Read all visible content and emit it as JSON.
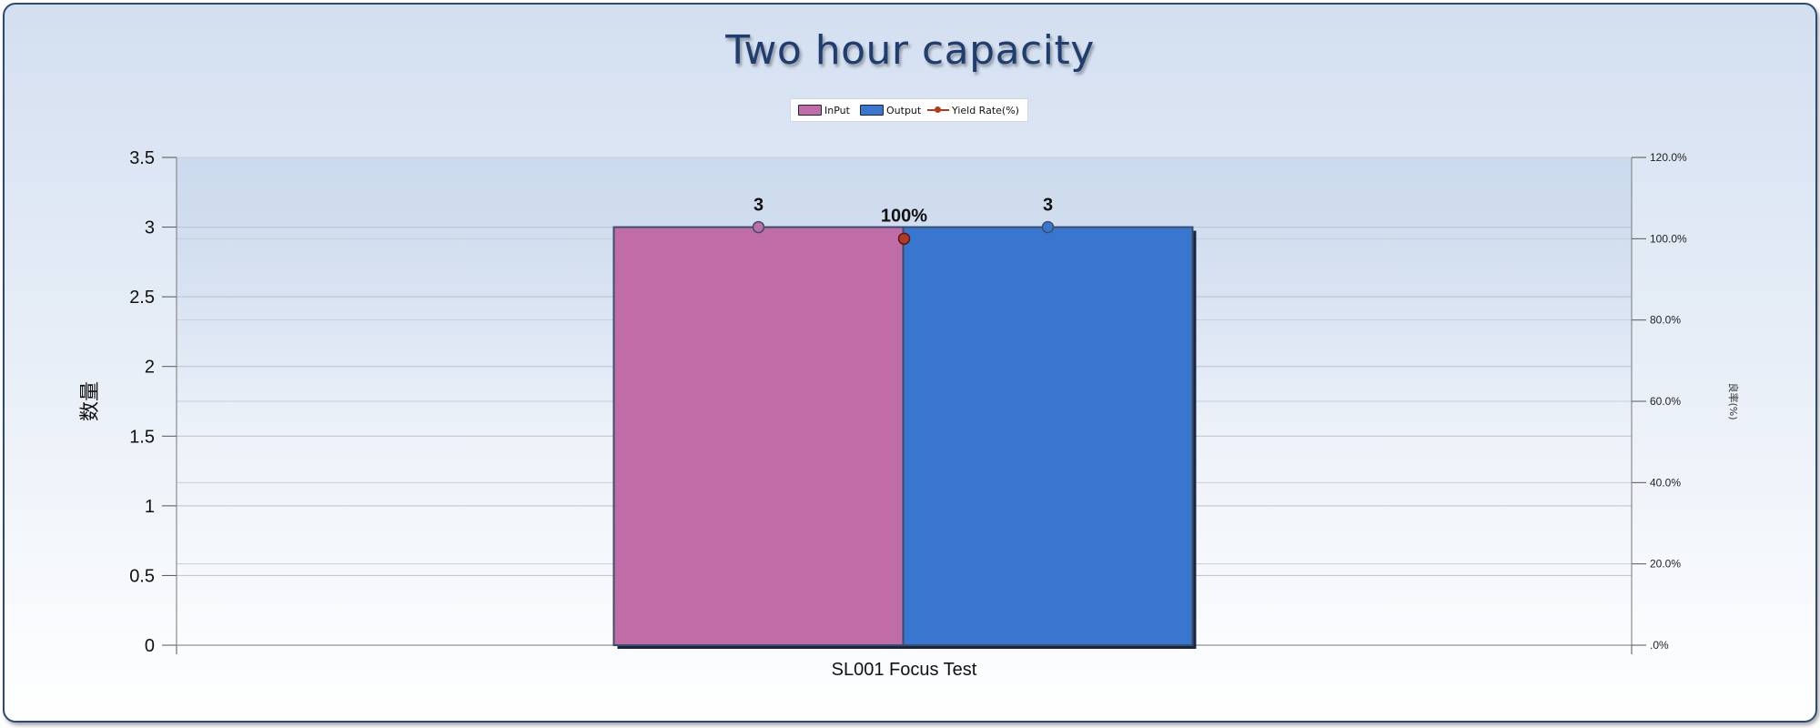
{
  "chart_data": {
    "type": "bar",
    "title": "Two hour capacity",
    "categories": [
      "SL001 Focus Test"
    ],
    "series": [
      {
        "name": "InPut",
        "values": [
          3
        ],
        "color": "#c06ca6",
        "data_label": "3"
      },
      {
        "name": "Output",
        "values": [
          3
        ],
        "color": "#3876cf",
        "data_label": "3"
      }
    ],
    "line_series": [
      {
        "name": "Yield Rate(%)",
        "values": [
          100
        ],
        "color": "#b23a22",
        "axis": "right",
        "data_label": "100%"
      }
    ],
    "ylabel": "数量",
    "y2label": "良率(%)",
    "ylim": [
      0,
      3.5
    ],
    "y2lim": [
      0,
      120
    ],
    "yticks": [
      "0",
      "0.5",
      "1",
      "1.5",
      "2",
      "2.5",
      "3",
      "3.5"
    ],
    "y2ticks": [
      ".0%",
      "20.0%",
      "40.0%",
      "60.0%",
      "80.0%",
      "100.0%",
      "120.0%"
    ],
    "grid": true,
    "legend_position": "top-center"
  }
}
